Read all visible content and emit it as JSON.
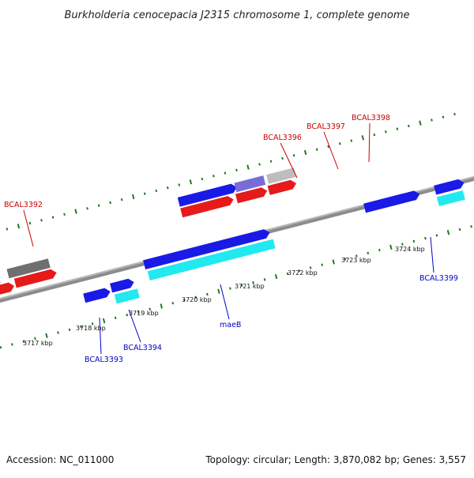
{
  "title": "Burkholderia cenocepacia J2315 chromosome 1, complete genome",
  "footer": {
    "accession": "Accession: NC_011000",
    "summary": "Topology: circular; Length: 3,870,082 bp; Genes: 3,557"
  },
  "colors": {
    "forward_strand_gene": "#1a1ae6",
    "reverse_strand_gene": "#e61a1a",
    "cds_forward": "#22e8f0",
    "pseudo_gene": "#6f6f6f",
    "light_gene": "#bdbdbd",
    "purple_gene": "#7a6cd8",
    "backbone": "#8c8c8c",
    "tick": "#1f7a1f",
    "label_red": "#cc0000",
    "label_blue": "#0000cc"
  },
  "ruler_kbp": [
    "3717 kbp",
    "3718 kbp",
    "3719 kbp",
    "3720 kbp",
    "3721 kbp",
    "3722 kbp",
    "3723 kbp",
    "3724 kbp"
  ],
  "gene_labels": [
    {
      "text": "BCAL3392",
      "strand": "top"
    },
    {
      "text": "BCAL3396",
      "strand": "top"
    },
    {
      "text": "BCAL3397",
      "strand": "top"
    },
    {
      "text": "BCAL3398",
      "strand": "top"
    },
    {
      "text": "BCAL3393",
      "strand": "bottom"
    },
    {
      "text": "BCAL3394",
      "strand": "bottom"
    },
    {
      "text": "maeB",
      "strand": "bottom"
    },
    {
      "text": "BCAL3399",
      "strand": "bottom"
    }
  ]
}
